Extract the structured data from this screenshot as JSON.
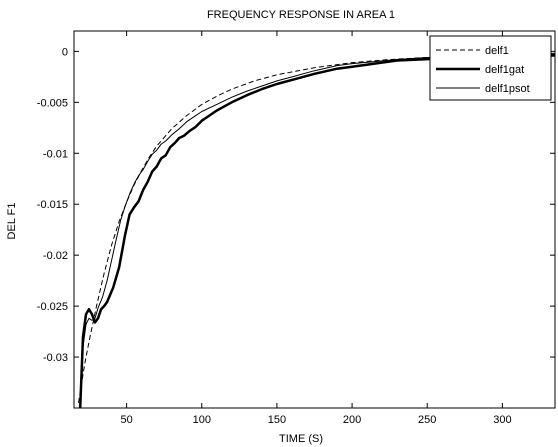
{
  "chart_data": {
    "type": "line",
    "title": "FREQUENCY RESPONSE IN AREA 1",
    "xlabel": "TIME (S)",
    "ylabel": "DEL F1",
    "xlim": [
      15,
      335
    ],
    "ylim": [
      -0.035,
      0.002
    ],
    "xticks": [
      50,
      100,
      150,
      200,
      250,
      300
    ],
    "xtick_labels": [
      "50",
      "100",
      "150",
      "200",
      "250",
      "300"
    ],
    "yticks": [
      0,
      -0.005,
      -0.01,
      -0.015,
      -0.02,
      -0.025,
      -0.03
    ],
    "ytick_labels": [
      "0",
      "-0.005",
      "-0.01",
      "-0.015",
      "-0.02",
      "-0.025",
      "-0.03"
    ],
    "grid": false,
    "legend_position": "top-right",
    "series": [
      {
        "name": "delf1",
        "style": "dashed",
        "x": [
          18,
          22,
          25,
          30,
          35,
          40,
          45,
          50,
          55,
          60,
          65,
          70,
          80,
          90,
          100,
          110,
          120,
          135,
          150,
          175,
          200,
          225,
          250,
          275,
          300,
          320,
          335
        ],
        "y": [
          -0.0345,
          -0.0308,
          -0.0285,
          -0.025,
          -0.0218,
          -0.019,
          -0.0167,
          -0.0148,
          -0.0131,
          -0.0117,
          -0.0104,
          -0.0093,
          -0.0076,
          -0.0063,
          -0.0052,
          -0.0044,
          -0.0037,
          -0.0029,
          -0.0023,
          -0.0016,
          -0.0011,
          -0.0008,
          -0.0006,
          -0.0004,
          -0.0003,
          -0.0002,
          -0.0002
        ]
      },
      {
        "name": "delf1gat",
        "style": "thick",
        "x": [
          19,
          21,
          23,
          25,
          27,
          29,
          31,
          33,
          35,
          37,
          39,
          41,
          43,
          45,
          47,
          49,
          52,
          55,
          58,
          61,
          64,
          67,
          70,
          73,
          76,
          79,
          82,
          85,
          88,
          92,
          96,
          100,
          105,
          110,
          120,
          130,
          140,
          150,
          160,
          175,
          190,
          200,
          215,
          230,
          245,
          260,
          275,
          290,
          300,
          315,
          335
        ],
        "y": [
          -0.0355,
          -0.028,
          -0.0258,
          -0.0253,
          -0.0258,
          -0.0266,
          -0.0262,
          -0.0253,
          -0.025,
          -0.0246,
          -0.0239,
          -0.0232,
          -0.0222,
          -0.0212,
          -0.0196,
          -0.018,
          -0.016,
          -0.0153,
          -0.0147,
          -0.0136,
          -0.0128,
          -0.0118,
          -0.0113,
          -0.0105,
          -0.0102,
          -0.0094,
          -0.009,
          -0.0085,
          -0.0083,
          -0.0078,
          -0.0074,
          -0.0068,
          -0.0063,
          -0.0058,
          -0.005,
          -0.0043,
          -0.0037,
          -0.0032,
          -0.0028,
          -0.0022,
          -0.0017,
          -0.0015,
          -0.0012,
          -0.0009,
          -0.0008,
          -0.0007,
          -0.0006,
          -0.0005,
          -0.0004,
          -0.0004,
          -0.0004
        ]
      },
      {
        "name": "delf1psot",
        "style": "thin",
        "x": [
          19,
          21,
          23,
          25,
          27,
          29,
          31,
          34,
          37,
          40,
          43,
          46,
          49,
          52,
          55,
          58,
          61,
          64,
          67,
          70,
          73,
          76,
          80,
          85,
          90,
          95,
          100,
          110,
          120,
          130,
          140,
          150,
          160,
          175,
          190,
          200,
          215,
          230,
          250,
          270,
          290,
          310,
          335
        ],
        "y": [
          -0.0345,
          -0.029,
          -0.0268,
          -0.0262,
          -0.0264,
          -0.0262,
          -0.0252,
          -0.0241,
          -0.0225,
          -0.0205,
          -0.0185,
          -0.0166,
          -0.0152,
          -0.014,
          -0.013,
          -0.0122,
          -0.0116,
          -0.0108,
          -0.0101,
          -0.0097,
          -0.0091,
          -0.0088,
          -0.0082,
          -0.0076,
          -0.0069,
          -0.0064,
          -0.0059,
          -0.0052,
          -0.0045,
          -0.0039,
          -0.0034,
          -0.0029,
          -0.0025,
          -0.0019,
          -0.0014,
          -0.0012,
          -0.001,
          -0.0008,
          -0.0006,
          -0.0005,
          -0.0004,
          -0.0003,
          -0.0003
        ]
      }
    ]
  }
}
